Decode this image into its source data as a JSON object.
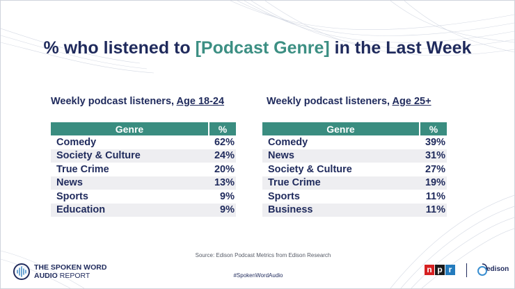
{
  "title": {
    "before": "% who listened to ",
    "accent": "[Podcast Genre]",
    "after": " in the Last Week"
  },
  "left": {
    "heading": "Weekly podcast listeners, ",
    "heading_u": "Age 18-24",
    "col_genre": "Genre",
    "col_pct": "%",
    "rows": [
      {
        "genre": "Comedy",
        "pct": "62%"
      },
      {
        "genre": "Society & Culture",
        "pct": "24%"
      },
      {
        "genre": "True Crime",
        "pct": "20%"
      },
      {
        "genre": "News",
        "pct": "13%"
      },
      {
        "genre": "Sports",
        "pct": "9%"
      },
      {
        "genre": "Education",
        "pct": "9%"
      }
    ]
  },
  "right": {
    "heading": "Weekly podcast listeners, ",
    "heading_u": "Age 25+",
    "col_genre": "Genre",
    "col_pct": "%",
    "rows": [
      {
        "genre": "Comedy",
        "pct": "39%"
      },
      {
        "genre": "News",
        "pct": "31%"
      },
      {
        "genre": "Society & Culture",
        "pct": "27%"
      },
      {
        "genre": "True Crime",
        "pct": "19%"
      },
      {
        "genre": "Sports",
        "pct": "11%"
      },
      {
        "genre": "Business",
        "pct": "11%"
      }
    ]
  },
  "source": "Source: Edison Podcast Metrics from Edison Research",
  "hashtag": "#SpokenWordAudio",
  "logos": {
    "swa_line1": "THE SPOKEN WORD",
    "swa_line2": "AUDIO",
    "swa_report": " REPORT",
    "npr_letters": [
      "n",
      "p",
      "r"
    ],
    "npr_colors": [
      "#d62021",
      "#1a1a1a",
      "#237bbd"
    ],
    "edison": "edison"
  }
}
